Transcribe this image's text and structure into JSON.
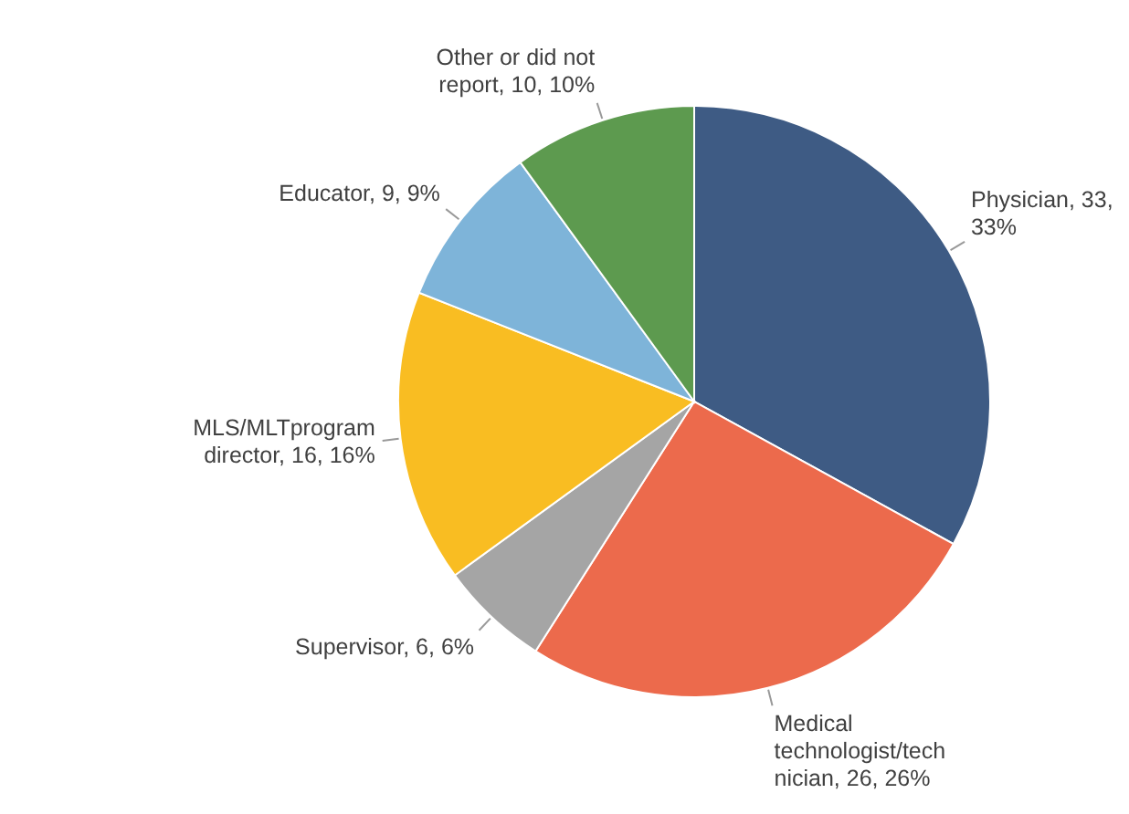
{
  "chart_data": {
    "type": "pie",
    "categories": [
      "Physician",
      "Medical technologist/technician",
      "Supervisor",
      "MLS/MLTprogram director",
      "Educator",
      "Other or did not report"
    ],
    "values": [
      33,
      26,
      6,
      16,
      9,
      10
    ],
    "value_labels": [
      "33, 33%",
      "26, 26%",
      "6, 6%",
      "16, 16%",
      "9, 9%",
      "10, 10%"
    ],
    "colors": [
      "#3e5b84",
      "#ec6a4c",
      "#a5a5a5",
      "#f9bd22",
      "#7eb4d9",
      "#5d9a4f"
    ]
  }
}
